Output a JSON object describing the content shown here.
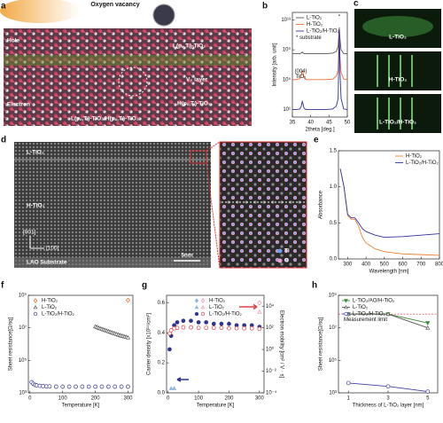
{
  "figure": {
    "panel_labels": [
      "a",
      "b",
      "c",
      "d",
      "e",
      "f",
      "g",
      "h"
    ],
    "a": {
      "title": "Oxygen vacancy",
      "labels": [
        "Hole",
        "Electron",
        "L(pₓ,Tᵢ)-TiO₂",
        "V₀ layer",
        "H(pₓ,Tᵢ)-TiO₂",
        "L(pₓ,Tᵢ)-TiO₂/H(pₓ,Tᵢ)-TiO₂"
      ]
    },
    "c": {
      "labels": [
        "L-TiO₂",
        "H-TiO₂",
        "L-TiO₂/H-TiO₂"
      ]
    },
    "d": {
      "labels": [
        "L-TiO₂",
        "H-TiO₂",
        "[001]",
        "[100]",
        "LAO Substrate",
        "5nm",
        "Ti",
        "O"
      ]
    }
  },
  "chart_data": [
    {
      "type": "line",
      "xlabel": "2theta [deg.]",
      "ylabel": "Intensity [arb. unit]",
      "ylog": true,
      "legend": "upper left",
      "annotations": [
        "(004)",
        "TiO₂",
        "*",
        "* substrate"
      ],
      "x": [
        35,
        36,
        37,
        37.4,
        37.7,
        37.9,
        38.1,
        38.5,
        39,
        40,
        42,
        44,
        46,
        47,
        47.5,
        47.8,
        48.0,
        48.3,
        49,
        50
      ],
      "xlim": [
        35,
        50
      ],
      "xticks": [
        35,
        40,
        45,
        50
      ],
      "ylim": [
        1,
        100000000000000
      ],
      "yticks": [
        {
          "value": 10,
          "label": "10¹"
        },
        {
          "value": 100000,
          "label": "10⁵"
        },
        {
          "value": 1000000000,
          "label": "10⁹"
        },
        {
          "value": 10000000000000,
          "label": "10¹³"
        }
      ],
      "series": [
        {
          "name": "L-TiO₂",
          "color": "#555555",
          "values": [
            300000000,
            300000000,
            300000000,
            350000000,
            500000000,
            400000000,
            320000000,
            300000000,
            300000000,
            300000000,
            300000000,
            300000000,
            350000000,
            600000000,
            3000000000,
            1000000000000,
            30000000000,
            1000000000,
            300000000,
            300000000
          ]
        },
        {
          "name": "H-TiO₂",
          "color": "#f07030",
          "values": [
            100000,
            100000,
            130000,
            400000,
            1500000,
            1000000,
            300000,
            120000,
            100000,
            100000,
            100000,
            100000,
            120000,
            300000,
            2000000,
            800000000000,
            100000000,
            1000000,
            120000,
            100000
          ]
        },
        {
          "name": "L-TiO₂/H-TiO₂",
          "color": "#2b2f9a",
          "values": [
            10,
            10,
            12,
            25,
            120,
            60,
            20,
            11,
            10,
            10,
            10,
            10,
            12,
            30,
            300,
            600000000000,
            1000000,
            300,
            12,
            10
          ]
        }
      ]
    },
    {
      "type": "line",
      "xlabel": "Wavelength [nm]",
      "ylabel": "Absorbance",
      "legend": "upper right",
      "x": [
        260,
        280,
        300,
        320,
        340,
        360,
        380,
        400,
        450,
        500,
        600,
        700,
        800
      ],
      "xlim": [
        250,
        800
      ],
      "xticks": [
        300,
        400,
        500,
        600,
        700,
        800
      ],
      "ylim": [
        0,
        1.5
      ],
      "yticks": [
        {
          "value": 0,
          "label": "0.0"
        },
        0.5,
        {
          "value": 1,
          "label": "1.0"
        },
        1.5
      ],
      "series": [
        {
          "name": "H-TiO₂",
          "color": "#f08030",
          "values": [
            1.25,
            1.0,
            0.6,
            0.55,
            0.55,
            0.45,
            0.3,
            0.22,
            0.14,
            0.1,
            0.07,
            0.06,
            0.05
          ]
        },
        {
          "name": "L-TiO₂/H-TiO₂",
          "color": "#3030a0",
          "values": [
            1.25,
            1.0,
            0.62,
            0.57,
            0.57,
            0.5,
            0.42,
            0.38,
            0.33,
            0.3,
            0.31,
            0.33,
            0.35
          ]
        }
      ]
    },
    {
      "type": "scatter",
      "xlabel": "Temperature [K]",
      "ylabel": "Sheet resistance[Ω/sq]",
      "ylog": true,
      "legend": "upper left",
      "xlim": [
        -5,
        315
      ],
      "xticks": [
        0,
        100,
        200,
        300
      ],
      "ylim": [
        1000,
        1000000000
      ],
      "yticks": [
        {
          "value": 1000,
          "label": "10³"
        },
        {
          "value": 100000,
          "label": "10⁵"
        },
        {
          "value": 10000000,
          "label": "10⁷"
        },
        {
          "value": 1000000000,
          "label": "10⁹"
        }
      ],
      "series": [
        {
          "name": "H-TiO₂",
          "color": "#f06020",
          "marker": "diamond",
          "filled": false,
          "x": [
            300
          ],
          "values": [
            500000000
          ]
        },
        {
          "name": "L-TiO₂",
          "color": "#555555",
          "marker": "triangle-up",
          "filled": false,
          "x": [
            200,
            205,
            210,
            215,
            220,
            225,
            230,
            235,
            240,
            245,
            250,
            255,
            260,
            265,
            270,
            275,
            280,
            285,
            290,
            295,
            300
          ],
          "values": [
            12000000,
            11000000,
            10000000,
            9200000,
            8500000,
            7800000,
            7200000,
            6600000,
            6100000,
            5600000,
            5200000,
            4800000,
            4400000,
            4100000,
            3800000,
            3500000,
            3300000,
            3100000,
            2900000,
            2700000,
            2500000
          ]
        },
        {
          "name": "L-TiO₂/H-TiO₂",
          "color": "#3838a0",
          "marker": "circle",
          "filled": false,
          "x": [
            5,
            10,
            15,
            20,
            30,
            40,
            50,
            60,
            80,
            100,
            120,
            140,
            160,
            180,
            200,
            220,
            240,
            260,
            280,
            300
          ],
          "values": [
            4500,
            3600,
            3100,
            2900,
            2700,
            2600,
            2500,
            2500,
            2400,
            2400,
            2400,
            2400,
            2400,
            2400,
            2400,
            2400,
            2400,
            2400,
            2400,
            2400
          ]
        }
      ]
    },
    {
      "type": "scatter",
      "xlabel": "Temperature [K]",
      "ylabel": "Carrier density [x10¹⁴/cm²]",
      "y2label": "Electron mobility [cm² / V · s]",
      "y2log": true,
      "legend": "upper center",
      "xlim": [
        -5,
        315
      ],
      "xticks": [
        0,
        100,
        200,
        300
      ],
      "ylim": [
        0,
        0.65
      ],
      "yticks": [
        {
          "value": 0,
          "label": "0.0"
        },
        0.2,
        0.4,
        0.6
      ],
      "y2lim": [
        0.0001,
        100000
      ],
      "y2ticks": [
        {
          "value": 0.0001,
          "label": "10⁻⁴"
        },
        {
          "value": 0.01,
          "label": "10⁻²"
        },
        {
          "value": 1,
          "label": "10⁰"
        },
        {
          "value": 100,
          "label": "10²"
        },
        {
          "value": 10000,
          "label": "10⁴"
        }
      ],
      "series": [
        {
          "name": "H-TiO₂",
          "color": "#8fb8e0",
          "marker": "diamond",
          "filled": true,
          "x": [
            300
          ],
          "values": [
            0.6
          ]
        },
        {
          "name": "H-TiO₂",
          "color": "#f090a0",
          "marker": "diamond",
          "filled": false,
          "axis": "y2",
          "x": [
            300
          ],
          "values": [
            20000
          ]
        },
        {
          "name": "L-TiO₂",
          "color": "#8fb8e0",
          "marker": "triangle-up",
          "filled": true,
          "x": [
            10,
            20
          ],
          "values": [
            0.03,
            0.03
          ]
        },
        {
          "name": "L-TiO₂",
          "color": "#f090a0",
          "marker": "triangle-up",
          "filled": false,
          "axis": "y2",
          "x": [
            300
          ],
          "values": [
            3000
          ]
        },
        {
          "name": "L-TiO₂/H-TiO₂",
          "color": "#2d3590",
          "marker": "circle",
          "filled": true,
          "x": [
            5,
            10,
            20,
            30,
            50,
            75,
            100,
            125,
            150,
            175,
            200,
            225,
            250,
            275,
            300
          ],
          "values": [
            0.29,
            0.38,
            0.45,
            0.47,
            0.48,
            0.48,
            0.47,
            0.47,
            0.46,
            0.46,
            0.46,
            0.45,
            0.45,
            0.45,
            0.44
          ]
        },
        {
          "name": "L-TiO₂/H-TiO₂",
          "color": "#e04040",
          "marker": "circle",
          "filled": false,
          "axis": "y2",
          "x": [
            5,
            10,
            20,
            30,
            50,
            75,
            100,
            125,
            150,
            175,
            200,
            225,
            250,
            275,
            300
          ],
          "values": [
            30,
            60,
            90,
            100,
            110,
            110,
            100,
            100,
            100,
            100,
            90,
            90,
            90,
            90,
            80
          ]
        }
      ]
    },
    {
      "type": "line",
      "xlabel": "Thickness of L-TiO₂ layer [nm]",
      "ylabel": "Sheet resistance[Ω/sq]",
      "ylog": true,
      "legend": "upper left",
      "x": [
        1,
        3,
        5
      ],
      "xlim": [
        0.5,
        5.5
      ],
      "xticks": [
        1,
        3,
        5
      ],
      "ylim": [
        1000,
        1000000000
      ],
      "yticks": [
        {
          "value": 1000,
          "label": "10³"
        },
        {
          "value": 100000,
          "label": "10⁵"
        },
        {
          "value": 10000000,
          "label": "10⁷"
        },
        {
          "value": 1000000000,
          "label": "10⁹"
        }
      ],
      "reference_line": {
        "value": 70000000,
        "label": "Measurement limit",
        "color": "#e03030"
      },
      "series": [
        {
          "name": "L-TiO₂/AO/H-TiO₂",
          "color": "#3a8a3a",
          "marker": "triangle-down",
          "filled": true,
          "values": [
            70000000,
            70000000,
            20000000
          ]
        },
        {
          "name": "L-TiO₂",
          "color": "#555555",
          "marker": "triangle-up",
          "filled": false,
          "values": [
            70000000,
            70000000,
            10000000
          ]
        },
        {
          "name": "L-TiO₂/H-TiO₂",
          "color": "#4040a0",
          "marker": "circle",
          "filled": false,
          "values": [
            4000,
            2500,
            1200
          ]
        }
      ]
    }
  ]
}
